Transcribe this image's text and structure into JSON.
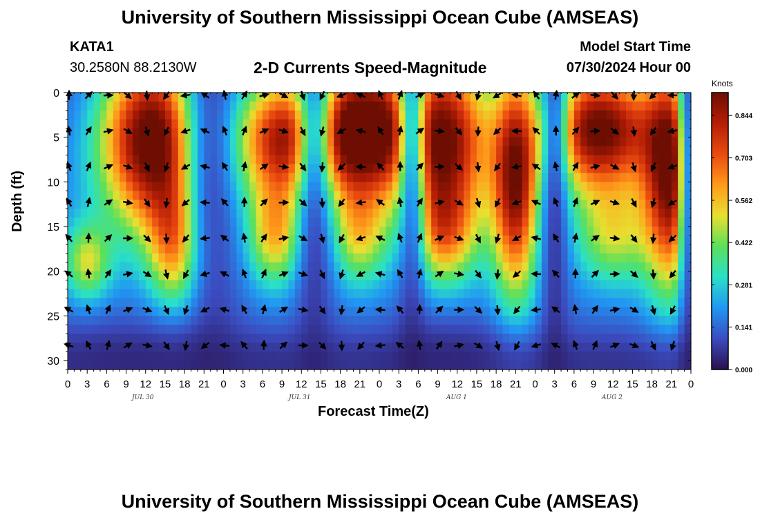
{
  "header": {
    "title": "University of Southern Mississippi Ocean Cube (AMSEAS)",
    "station": "KATA1",
    "coords": "30.2580N  88.2130W",
    "plot_title": "2-D Currents Speed-Magnitude",
    "model_start_label": "Model Start Time",
    "model_start_value": "07/30/2024 Hour 00"
  },
  "footer": {
    "title": "University of Southern Mississippi Ocean Cube (AMSEAS)"
  },
  "chart_data": {
    "type": "heatmap",
    "title": "2-D Currents Speed-Magnitude",
    "xlabel": "Forecast Time(Z)",
    "ylabel": "Depth (ft)",
    "xlim": [
      0,
      96
    ],
    "ylim": [
      0,
      31
    ],
    "x_tick_labels": [
      "0",
      "3",
      "6",
      "9",
      "12",
      "15",
      "18",
      "21",
      "0",
      "3",
      "6",
      "9",
      "12",
      "15",
      "18",
      "21",
      "0",
      "3",
      "6",
      "9",
      "12",
      "15",
      "18",
      "21",
      "0",
      "3",
      "6",
      "9",
      "12",
      "15",
      "18",
      "21",
      "0"
    ],
    "y_ticks": [
      0,
      5,
      10,
      15,
      20,
      25,
      30
    ],
    "date_labels": [
      {
        "label": "JUL 30",
        "hour": 6
      },
      {
        "label": "JUL 31",
        "hour": 30
      },
      {
        "label": "AUG 1",
        "hour": 54
      },
      {
        "label": "AUG 2",
        "hour": 78
      }
    ],
    "colorbar": {
      "unit": "Knots",
      "min": 0.0,
      "max": 0.92,
      "tick_values": [
        0.0,
        0.141,
        0.281,
        0.422,
        0.562,
        0.703,
        0.844
      ],
      "tick_labels": [
        "0.000",
        "0.141",
        "0.281",
        "0.422",
        "0.562",
        "0.703",
        "0.844"
      ],
      "colors": [
        "#2a0f4e",
        "#3b4cc0",
        "#2196f3",
        "#29e0c8",
        "#5be05b",
        "#e8e030",
        "#ff9a1a",
        "#ea4a10",
        "#b51e05",
        "#6e0e02"
      ]
    },
    "vector_rows_depth_ft": [
      0,
      4,
      8,
      12,
      16,
      20,
      24,
      28
    ],
    "speed_profile_hours": [
      0,
      2,
      4,
      6,
      8,
      10,
      12,
      14,
      16,
      18,
      20,
      22,
      24,
      26,
      28,
      30,
      32,
      34,
      36,
      38,
      40,
      42,
      44,
      46,
      48,
      50,
      52,
      54,
      56,
      58,
      60,
      62,
      64,
      66,
      68,
      70,
      72,
      74,
      76,
      78,
      80,
      82,
      84,
      86,
      88,
      90,
      92,
      94,
      96
    ],
    "speed_profile_depth_ft": [
      0,
      2,
      4,
      6,
      8,
      10,
      12,
      14,
      16,
      18,
      20,
      22,
      24,
      26,
      28,
      30
    ],
    "speed_profile_note": "Current speed (knots) by forecast hour and depth, estimated from colour scale"
  }
}
